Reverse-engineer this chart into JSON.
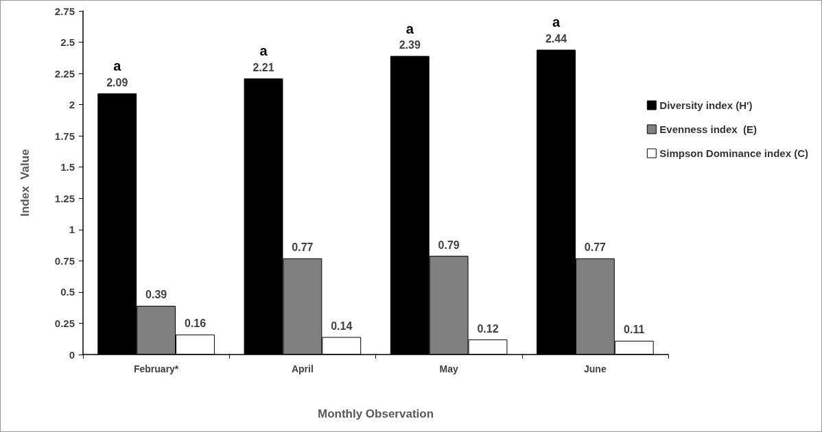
{
  "chart_data": {
    "type": "bar",
    "xlabel": "Monthly Observation",
    "ylabel": "Index  Value",
    "categories": [
      "February*",
      "April",
      "May",
      "June"
    ],
    "series": [
      {
        "name": "Diversity index (H')",
        "color": "#000000",
        "values": [
          2.09,
          2.21,
          2.39,
          2.44
        ]
      },
      {
        "name": "Evenness index  (E)",
        "color": "#808080",
        "values": [
          0.39,
          0.77,
          0.79,
          0.77
        ]
      },
      {
        "name": "Simpson Dominance index (C)",
        "color": "#ffffff",
        "values": [
          0.16,
          0.14,
          0.12,
          0.11
        ]
      }
    ],
    "ylim": [
      0,
      2.75
    ],
    "yticks": [
      0,
      0.25,
      0.5,
      0.75,
      1,
      1.25,
      1.5,
      1.75,
      2,
      2.25,
      2.5,
      2.75
    ],
    "grid": false,
    "legend": "right",
    "data_labels": true,
    "annotations": [
      "a",
      "a",
      "a",
      "a"
    ]
  }
}
